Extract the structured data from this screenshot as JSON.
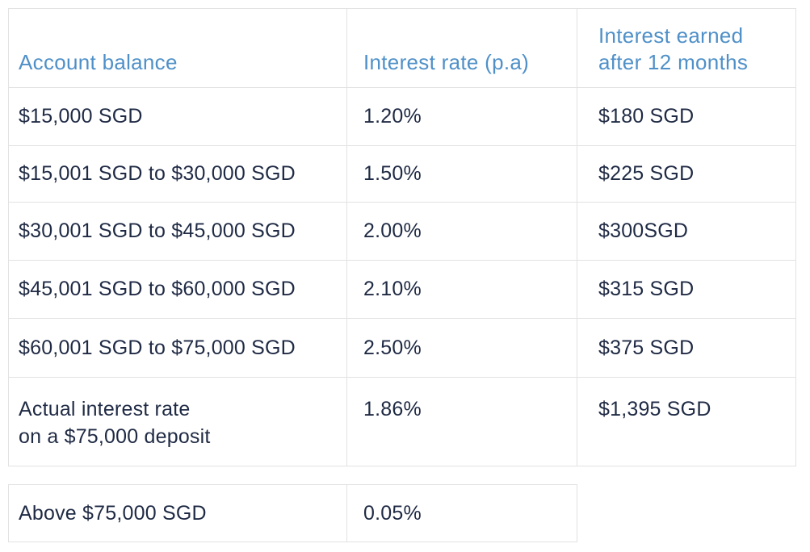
{
  "headers": {
    "balance": "Account balance",
    "rate": "Interest rate (p.a)",
    "earned_line1": "Interest earned",
    "earned_line2": "after 12 months"
  },
  "rows": [
    {
      "balance": "$15,000 SGD",
      "rate": "1.20%",
      "earned": "$180 SGD"
    },
    {
      "balance": "$15,001 SGD to $30,000 SGD",
      "rate": "1.50%",
      "earned": "$225 SGD"
    },
    {
      "balance": "$30,001 SGD to $45,000 SGD",
      "rate": "2.00%",
      "earned": "$300SGD"
    },
    {
      "balance": "$45,001 SGD to $60,000 SGD",
      "rate": "2.10%",
      "earned": "$315 SGD"
    },
    {
      "balance": "$60,001 SGD to $75,000 SGD",
      "rate": "2.50%",
      "earned": "$375 SGD"
    }
  ],
  "summary": {
    "label_line1": "Actual interest rate",
    "label_line2": "on a $75,000 deposit",
    "rate": "1.86%",
    "earned": "$1,395 SGD"
  },
  "extra": {
    "balance": "Above $75,000 SGD",
    "rate": "0.05%"
  },
  "colors": {
    "header_text": "#4f90c8",
    "body_text": "#1f2a44",
    "border": "#e2e2e2"
  }
}
